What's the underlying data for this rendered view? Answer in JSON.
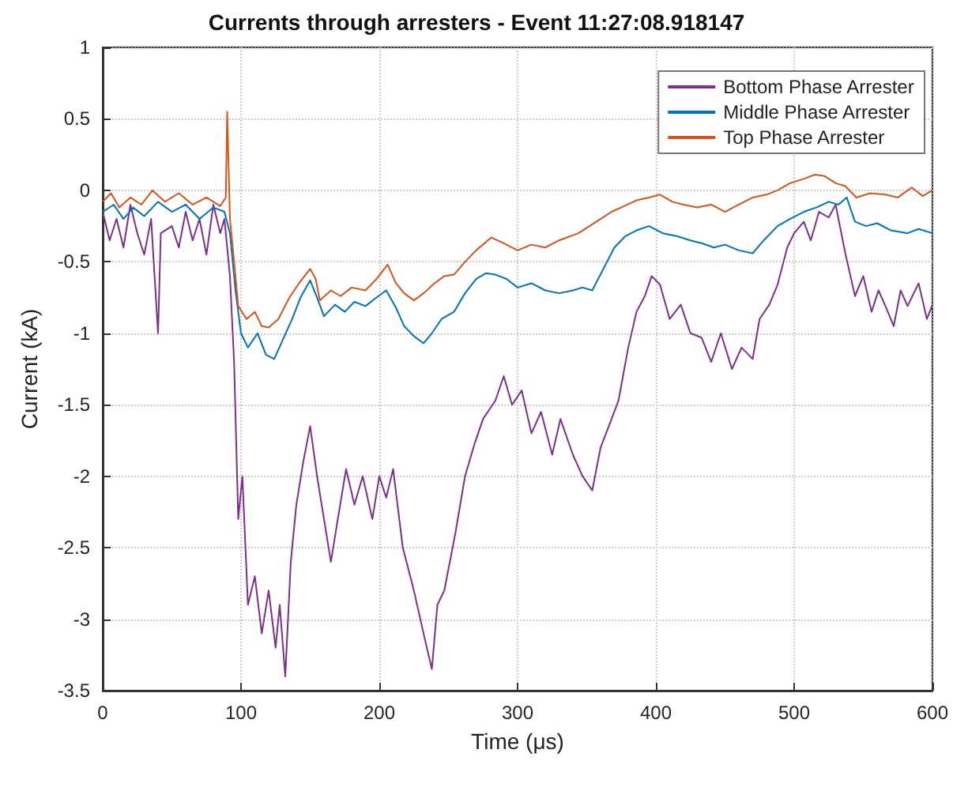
{
  "chart_data": {
    "type": "line",
    "title": "Currents through arresters - Event 11:27:08.918147",
    "xlabel": "Time (μs)",
    "ylabel": "Current (kA)",
    "xlim": [
      0,
      600
    ],
    "xticks": [
      0,
      100,
      200,
      300,
      400,
      500,
      600
    ],
    "ylim": [
      -3.5,
      1
    ],
    "yticks": [
      -3.5,
      -3,
      -2.5,
      -2,
      -1.5,
      -1,
      -0.5,
      0,
      0.5,
      1
    ],
    "grid": true,
    "legend": "top right",
    "marker": "none",
    "line_style": "solid",
    "series": [
      {
        "name": "Bottom Phase Arrester",
        "color": "#7e2f8e",
        "x": [
          0,
          5,
          10,
          15,
          20,
          25,
          30,
          35,
          40,
          42,
          50,
          55,
          60,
          65,
          70,
          75,
          80,
          85,
          88,
          92,
          95,
          98,
          101,
          105,
          110,
          115,
          120,
          125,
          128,
          132,
          136,
          140,
          145,
          150,
          155,
          160,
          165,
          170,
          176,
          182,
          188,
          195,
          200,
          205,
          210,
          217,
          225,
          232,
          238,
          242,
          247,
          255,
          262,
          269,
          275,
          284,
          290,
          296,
          303,
          310,
          317,
          325,
          331,
          340,
          347,
          354,
          360,
          366,
          373,
          380,
          386,
          392,
          397,
          403,
          410,
          418,
          425,
          433,
          440,
          447,
          455,
          462,
          470,
          475,
          482,
          488,
          495,
          500,
          507,
          512,
          518,
          525,
          530,
          537,
          544,
          550,
          556,
          561,
          566,
          572,
          577,
          582,
          590,
          596,
          600
        ],
        "values": [
          -0.15,
          -0.35,
          -0.2,
          -0.4,
          -0.1,
          -0.3,
          -0.45,
          -0.2,
          -1.0,
          -0.3,
          -0.25,
          -0.4,
          -0.15,
          -0.35,
          -0.2,
          -0.45,
          -0.1,
          -0.3,
          -0.2,
          -0.6,
          -1.2,
          -2.3,
          -2.0,
          -2.9,
          -2.7,
          -3.1,
          -2.8,
          -3.2,
          -2.9,
          -3.4,
          -2.6,
          -2.2,
          -1.9,
          -1.65,
          -2.0,
          -2.3,
          -2.6,
          -2.3,
          -1.95,
          -2.2,
          -2.0,
          -2.3,
          -2.0,
          -2.15,
          -1.95,
          -2.5,
          -2.8,
          -3.1,
          -3.35,
          -2.9,
          -2.8,
          -2.4,
          -2.0,
          -1.77,
          -1.6,
          -1.47,
          -1.3,
          -1.5,
          -1.4,
          -1.7,
          -1.55,
          -1.85,
          -1.6,
          -1.85,
          -2.0,
          -2.1,
          -1.8,
          -1.65,
          -1.47,
          -1.1,
          -0.85,
          -0.74,
          -0.6,
          -0.66,
          -0.9,
          -0.8,
          -1.0,
          -1.03,
          -1.2,
          -1.0,
          -1.25,
          -1.1,
          -1.18,
          -0.9,
          -0.8,
          -0.66,
          -0.4,
          -0.3,
          -0.22,
          -0.35,
          -0.15,
          -0.19,
          -0.1,
          -0.44,
          -0.74,
          -0.6,
          -0.85,
          -0.7,
          -0.81,
          -0.95,
          -0.7,
          -0.81,
          -0.65,
          -0.9,
          -0.8
        ]
      },
      {
        "name": "Middle Phase Arrester",
        "color": "#0072bd",
        "x": [
          0,
          8,
          15,
          22,
          30,
          40,
          50,
          60,
          70,
          80,
          88,
          92,
          96,
          100,
          105,
          112,
          118,
          124,
          130,
          137,
          143,
          150,
          155,
          160,
          168,
          175,
          182,
          190,
          198,
          205,
          212,
          218,
          225,
          232,
          238,
          245,
          254,
          262,
          270,
          277,
          284,
          292,
          300,
          310,
          320,
          330,
          340,
          347,
          354,
          362,
          370,
          378,
          386,
          395,
          405,
          415,
          425,
          433,
          442,
          450,
          460,
          470,
          478,
          488,
          497,
          507,
          516,
          525,
          532,
          538,
          544,
          552,
          560,
          570,
          582,
          590,
          600
        ],
        "values": [
          -0.15,
          -0.1,
          -0.2,
          -0.12,
          -0.18,
          -0.08,
          -0.15,
          -0.1,
          -0.2,
          -0.12,
          -0.15,
          -0.3,
          -0.7,
          -1.0,
          -1.1,
          -1.0,
          -1.15,
          -1.18,
          -1.05,
          -0.9,
          -0.75,
          -0.63,
          -0.75,
          -0.88,
          -0.8,
          -0.85,
          -0.78,
          -0.81,
          -0.75,
          -0.7,
          -0.82,
          -0.95,
          -1.02,
          -1.07,
          -1.0,
          -0.9,
          -0.85,
          -0.72,
          -0.62,
          -0.58,
          -0.59,
          -0.62,
          -0.68,
          -0.65,
          -0.7,
          -0.72,
          -0.7,
          -0.68,
          -0.7,
          -0.55,
          -0.4,
          -0.32,
          -0.28,
          -0.25,
          -0.3,
          -0.32,
          -0.35,
          -0.37,
          -0.4,
          -0.38,
          -0.42,
          -0.44,
          -0.35,
          -0.25,
          -0.2,
          -0.15,
          -0.12,
          -0.08,
          -0.1,
          -0.05,
          -0.22,
          -0.25,
          -0.23,
          -0.28,
          -0.3,
          -0.27,
          -0.3
        ]
      },
      {
        "name": "Top Phase Arrester",
        "color": "#d95319",
        "x": [
          0,
          6,
          12,
          20,
          28,
          36,
          45,
          55,
          65,
          75,
          85,
          89,
          90,
          92,
          95,
          98,
          104,
          110,
          115,
          120,
          127,
          135,
          142,
          150,
          154,
          157,
          165,
          172,
          180,
          190,
          198,
          206,
          212,
          218,
          225,
          232,
          240,
          247,
          254,
          262,
          270,
          281,
          290,
          300,
          310,
          320,
          330,
          344,
          352,
          360,
          368,
          377,
          386,
          395,
          403,
          412,
          420,
          430,
          440,
          450,
          460,
          470,
          480,
          488,
          497,
          507,
          515,
          522,
          530,
          537,
          545,
          555,
          566,
          575,
          585,
          593,
          600
        ],
        "values": [
          -0.08,
          -0.02,
          -0.12,
          -0.05,
          -0.1,
          0.0,
          -0.08,
          -0.02,
          -0.1,
          -0.05,
          -0.11,
          -0.05,
          0.55,
          -0.2,
          -0.5,
          -0.81,
          -0.9,
          -0.85,
          -0.95,
          -0.96,
          -0.9,
          -0.75,
          -0.65,
          -0.55,
          -0.62,
          -0.77,
          -0.7,
          -0.74,
          -0.68,
          -0.7,
          -0.62,
          -0.52,
          -0.65,
          -0.72,
          -0.77,
          -0.72,
          -0.65,
          -0.6,
          -0.59,
          -0.5,
          -0.42,
          -0.33,
          -0.37,
          -0.42,
          -0.38,
          -0.4,
          -0.35,
          -0.3,
          -0.25,
          -0.2,
          -0.15,
          -0.11,
          -0.07,
          -0.05,
          -0.03,
          -0.08,
          -0.1,
          -0.12,
          -0.1,
          -0.15,
          -0.1,
          -0.05,
          -0.03,
          0.0,
          0.05,
          0.08,
          0.11,
          0.1,
          0.05,
          0.03,
          -0.05,
          -0.02,
          -0.03,
          -0.05,
          0.02,
          -0.04,
          0.0
        ]
      }
    ]
  }
}
